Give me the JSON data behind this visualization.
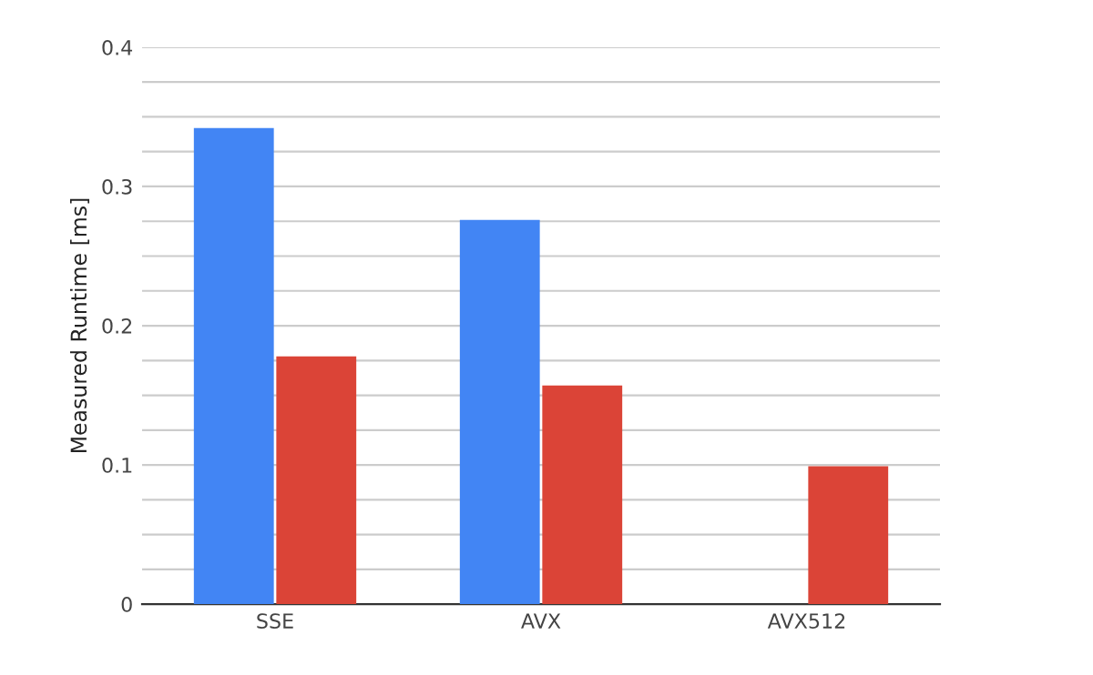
{
  "chart_data": {
    "type": "bar",
    "ylabel": "Measured Runtime [ms]",
    "categories": [
      "SSE",
      "AVX",
      "AVX512"
    ],
    "series": [
      {
        "color": "#4285f4",
        "values": [
          0.342,
          0.276,
          null
        ]
      },
      {
        "color": "#db4437",
        "values": [
          0.178,
          0.157,
          0.099
        ]
      }
    ],
    "ylim": [
      0,
      0.4
    ],
    "yticks": [
      0,
      {
        "value": 0.025,
        "label": null
      },
      {
        "value": 0.05,
        "label": null
      },
      {
        "value": 0.075,
        "label": null
      },
      0.1,
      {
        "value": 0.125,
        "label": null
      },
      {
        "value": 0.15,
        "label": null
      },
      {
        "value": 0.175,
        "label": null
      },
      0.2,
      {
        "value": 0.225,
        "label": null
      },
      {
        "value": 0.25,
        "label": null
      },
      {
        "value": 0.275,
        "label": null
      },
      0.3,
      {
        "value": 0.325,
        "label": null
      },
      {
        "value": 0.35,
        "label": null
      },
      {
        "value": 0.375,
        "label": null
      },
      0.4
    ],
    "grid": "y"
  }
}
